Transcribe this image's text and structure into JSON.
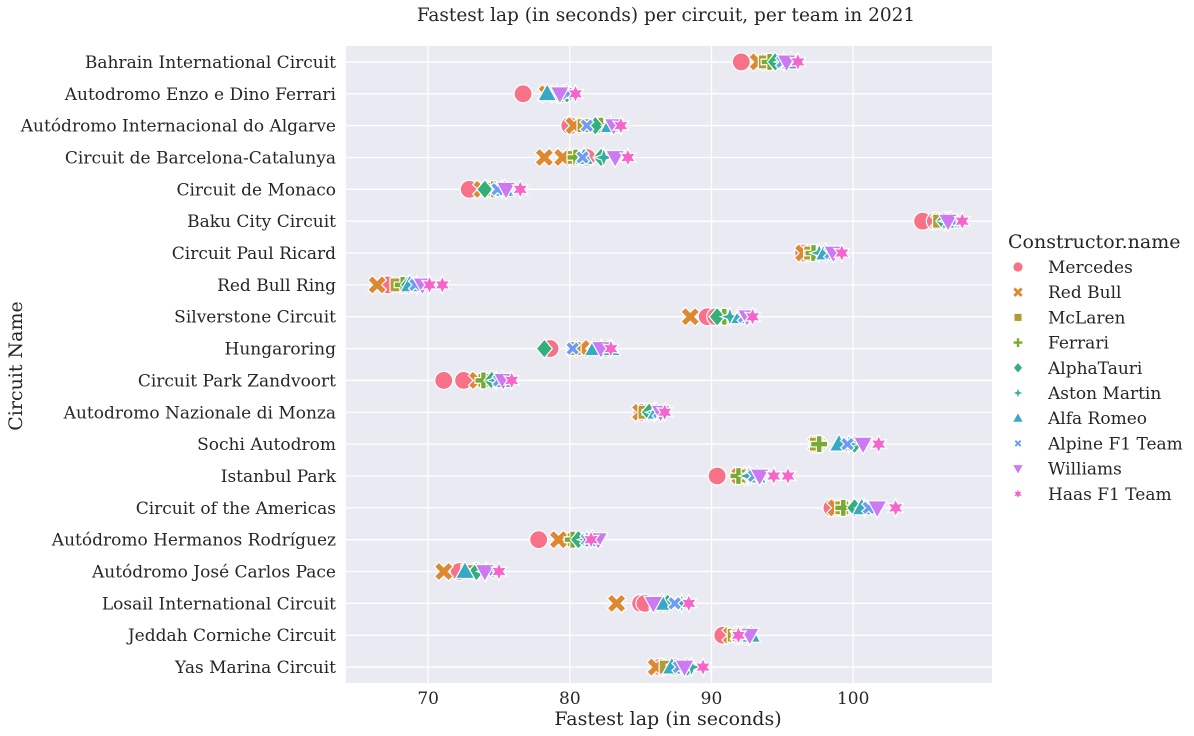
{
  "chart_data": {
    "type": "scatter",
    "title": "Fastest lap (in seconds) per circuit, per team in 2021",
    "xlabel": "Fastest lap (in seconds)",
    "ylabel": "Circuit Name",
    "xlim": [
      64.2,
      109.8
    ],
    "xticks": [
      70,
      80,
      90,
      100
    ],
    "grid": true,
    "legend": {
      "title": "Constructor.name",
      "placement": "right"
    },
    "categories": [
      "Bahrain International Circuit",
      "Autodromo Enzo e Dino Ferrari",
      "Autódromo Internacional do Algarve",
      "Circuit de Barcelona-Catalunya",
      "Circuit de Monaco",
      "Baku City Circuit",
      "Circuit Paul Ricard",
      "Red Bull Ring",
      "Silverstone Circuit",
      "Hungaroring",
      "Circuit Park Zandvoort",
      "Autodromo Nazionale di Monza",
      "Sochi Autodrom",
      "Istanbul Park",
      "Circuit of the Americas",
      "Autódromo Hermanos Rodríguez",
      "Autódromo José Carlos Pace",
      "Losail International Circuit",
      "Jeddah Corniche Circuit",
      "Yas Marina Circuit"
    ],
    "series": [
      {
        "name": "Mercedes",
        "color": "#f77189",
        "marker": "circle",
        "values": [
          [
            92.1,
            92.1
          ],
          [
            76.7,
            76.7
          ],
          [
            80.0,
            80.0
          ],
          [
            81.2,
            81.2
          ],
          [
            72.9,
            72.9
          ],
          [
            104.9,
            105.8
          ],
          [
            96.5,
            96.5
          ],
          [
            67.2,
            67.2
          ],
          [
            89.7,
            90.3
          ],
          [
            78.6,
            78.6
          ],
          [
            71.1,
            72.5
          ],
          [
            85.1,
            85.1
          ],
          [
            97.5,
            97.5
          ],
          [
            90.4,
            90.4
          ],
          [
            98.5,
            98.5
          ],
          [
            77.8,
            77.8
          ],
          [
            72.2,
            72.2
          ],
          [
            85.0,
            85.3
          ],
          [
            90.8,
            90.8
          ],
          [
            86.4,
            86.4
          ]
        ]
      },
      {
        "name": "Red Bull",
        "color": "#dc8932",
        "marker": "x",
        "values": [
          [
            93.3,
            93.3
          ],
          [
            78.4,
            78.4
          ],
          [
            80.3,
            80.3
          ],
          [
            78.2,
            79.5
          ],
          [
            73.8,
            73.8
          ],
          [
            106.1,
            106.1
          ],
          [
            96.5,
            96.5
          ],
          [
            66.4,
            66.4
          ],
          [
            88.5,
            88.5
          ],
          [
            80.8,
            80.8
          ],
          [
            73.5,
            73.5
          ],
          [
            85.0,
            85.0
          ],
          [
            97.4,
            97.4
          ],
          [
            92.0,
            92.0
          ],
          [
            98.8,
            98.8
          ],
          [
            79.2,
            79.2
          ],
          [
            71.1,
            71.1
          ],
          [
            83.3,
            83.3
          ],
          [
            91.4,
            91.4
          ],
          [
            86.1,
            86.1
          ]
        ]
      },
      {
        "name": "McLaren",
        "color": "#ae9d31",
        "marker": "square",
        "values": [
          [
            93.8,
            93.8
          ],
          [
            79.2,
            79.2
          ],
          [
            81.0,
            81.0
          ],
          [
            80.3,
            80.3
          ],
          [
            74.2,
            74.2
          ],
          [
            106.1,
            106.1
          ],
          [
            97.0,
            97.0
          ],
          [
            67.8,
            67.8
          ],
          [
            90.8,
            90.8
          ],
          [
            80.3,
            80.3
          ],
          [
            74.0,
            74.0
          ],
          [
            85.3,
            85.3
          ],
          [
            97.4,
            97.4
          ],
          [
            92.3,
            92.3
          ],
          [
            99.2,
            99.2
          ],
          [
            80.3,
            80.3
          ],
          [
            72.8,
            72.8
          ],
          [
            86.1,
            86.1
          ],
          [
            91.6,
            91.6
          ],
          [
            86.8,
            86.8
          ]
        ]
      },
      {
        "name": "Ferrari",
        "color": "#77ab31",
        "marker": "plus",
        "values": [
          [
            94.1,
            94.1
          ],
          [
            79.6,
            79.6
          ],
          [
            82.2,
            82.2
          ],
          [
            80.4,
            80.4
          ],
          [
            74.6,
            74.6
          ],
          [
            106.6,
            106.6
          ],
          [
            97.2,
            97.2
          ],
          [
            68.2,
            68.2
          ],
          [
            90.9,
            90.9
          ],
          [
            82.5,
            82.5
          ],
          [
            73.9,
            73.9
          ],
          [
            85.7,
            85.7
          ],
          [
            97.6,
            97.6
          ],
          [
            91.9,
            91.9
          ],
          [
            99.3,
            99.3
          ],
          [
            80.2,
            80.2
          ],
          [
            73.4,
            73.4
          ],
          [
            86.4,
            86.4
          ],
          [
            92.0,
            92.0
          ],
          [
            87.4,
            87.4
          ]
        ]
      },
      {
        "name": "AlphaTauri",
        "color": "#33b07a",
        "marker": "diamond",
        "values": [
          [
            94.5,
            94.5
          ],
          [
            79.8,
            79.8
          ],
          [
            81.8,
            81.8
          ],
          [
            82.2,
            82.2
          ],
          [
            74.0,
            74.0
          ],
          [
            106.4,
            106.4
          ],
          [
            98.1,
            98.1
          ],
          [
            68.6,
            68.6
          ],
          [
            90.4,
            90.4
          ],
          [
            78.2,
            78.2
          ],
          [
            74.5,
            74.5
          ],
          [
            85.6,
            85.6
          ],
          [
            100.1,
            100.1
          ],
          [
            92.7,
            92.7
          ],
          [
            100.1,
            100.1
          ],
          [
            80.6,
            80.6
          ],
          [
            73.4,
            73.4
          ],
          [
            86.9,
            86.9
          ],
          [
            92.3,
            92.3
          ],
          [
            88.3,
            88.3
          ]
        ]
      },
      {
        "name": "Aston Martin",
        "color": "#36ada4",
        "marker": "star4",
        "values": [
          [
            95.1,
            95.1
          ],
          [
            79.1,
            79.1
          ],
          [
            82.9,
            82.9
          ],
          [
            82.4,
            82.4
          ],
          [
            75.2,
            75.2
          ],
          [
            106.7,
            106.7
          ],
          [
            97.6,
            97.6
          ],
          [
            69.2,
            69.2
          ],
          [
            91.3,
            91.3
          ],
          [
            82.2,
            82.2
          ],
          [
            74.8,
            74.8
          ],
          [
            86.0,
            86.0
          ],
          [
            99.7,
            99.7
          ],
          [
            92.6,
            92.6
          ],
          [
            100.8,
            100.8
          ],
          [
            81.2,
            81.2
          ],
          [
            74.1,
            74.1
          ],
          [
            87.9,
            87.9
          ],
          [
            92.6,
            92.6
          ],
          [
            88.6,
            88.6
          ]
        ]
      },
      {
        "name": "Alfa Romeo",
        "color": "#38a9c5",
        "marker": "triangle-up",
        "values": [
          [
            95.6,
            95.6
          ],
          [
            78.4,
            78.4
          ],
          [
            82.8,
            82.8
          ],
          [
            81.0,
            81.0
          ],
          [
            75.4,
            75.4
          ],
          [
            106.9,
            106.9
          ],
          [
            98.0,
            98.0
          ],
          [
            68.7,
            68.7
          ],
          [
            92.0,
            92.0
          ],
          [
            81.7,
            82.9
          ],
          [
            75.2,
            75.2
          ],
          [
            86.1,
            86.1
          ],
          [
            99.0,
            99.0
          ],
          [
            93.2,
            93.2
          ],
          [
            100.6,
            100.6
          ],
          [
            81.6,
            81.6
          ],
          [
            72.6,
            72.6
          ],
          [
            86.5,
            86.5
          ],
          [
            92.8,
            92.8
          ],
          [
            87.2,
            87.2
          ]
        ]
      },
      {
        "name": "Alpine F1 Team",
        "color": "#6e9bf4",
        "marker": "x-small",
        "values": [
          [
            95.0,
            95.0
          ],
          [
            79.8,
            79.8
          ],
          [
            81.2,
            81.2
          ],
          [
            80.9,
            80.9
          ],
          [
            74.9,
            74.9
          ],
          [
            107.0,
            107.0
          ],
          [
            98.4,
            98.4
          ],
          [
            69.1,
            69.1
          ],
          [
            92.3,
            92.3
          ],
          [
            80.2,
            80.2
          ],
          [
            75.0,
            75.0
          ],
          [
            86.3,
            86.3
          ],
          [
            99.6,
            99.6
          ],
          [
            93.0,
            93.0
          ],
          [
            101.1,
            101.1
          ],
          [
            81.2,
            81.2
          ],
          [
            74.3,
            74.3
          ],
          [
            87.4,
            87.4
          ],
          [
            91.8,
            91.8
          ],
          [
            87.7,
            87.7
          ]
        ]
      },
      {
        "name": "Williams",
        "color": "#cc7af4",
        "marker": "triangle-down",
        "values": [
          [
            95.3,
            95.3
          ],
          [
            79.3,
            79.3
          ],
          [
            83.1,
            83.1
          ],
          [
            83.2,
            83.2
          ],
          [
            75.5,
            75.5
          ],
          [
            106.7,
            106.7
          ],
          [
            98.6,
            98.6
          ],
          [
            69.6,
            69.6
          ],
          [
            92.5,
            92.5
          ],
          [
            82.2,
            82.2
          ],
          [
            75.3,
            75.3
          ],
          [
            86.4,
            86.4
          ],
          [
            100.7,
            100.7
          ],
          [
            93.4,
            93.4
          ],
          [
            101.7,
            101.7
          ],
          [
            82.0,
            82.0
          ],
          [
            74.0,
            74.0
          ],
          [
            85.9,
            85.9
          ],
          [
            92.7,
            92.7
          ],
          [
            88.1,
            88.1
          ]
        ]
      },
      {
        "name": "Haas F1 Team",
        "color": "#f565cc",
        "marker": "star6",
        "values": [
          [
            96.1,
            96.1
          ],
          [
            80.4,
            80.4
          ],
          [
            83.6,
            83.6
          ],
          [
            84.1,
            84.1
          ],
          [
            76.5,
            76.5
          ],
          [
            107.7,
            107.7
          ],
          [
            99.2,
            99.2
          ],
          [
            71.0,
            70.1
          ],
          [
            92.9,
            92.9
          ],
          [
            82.9,
            82.9
          ],
          [
            75.9,
            75.9
          ],
          [
            86.7,
            86.7
          ],
          [
            101.8,
            101.8
          ],
          [
            95.4,
            94.4
          ],
          [
            103.0,
            103.0
          ],
          [
            81.5,
            81.5
          ],
          [
            75.0,
            75.0
          ],
          [
            88.4,
            88.4
          ],
          [
            91.9,
            91.9
          ],
          [
            89.4,
            89.4
          ]
        ]
      }
    ]
  }
}
